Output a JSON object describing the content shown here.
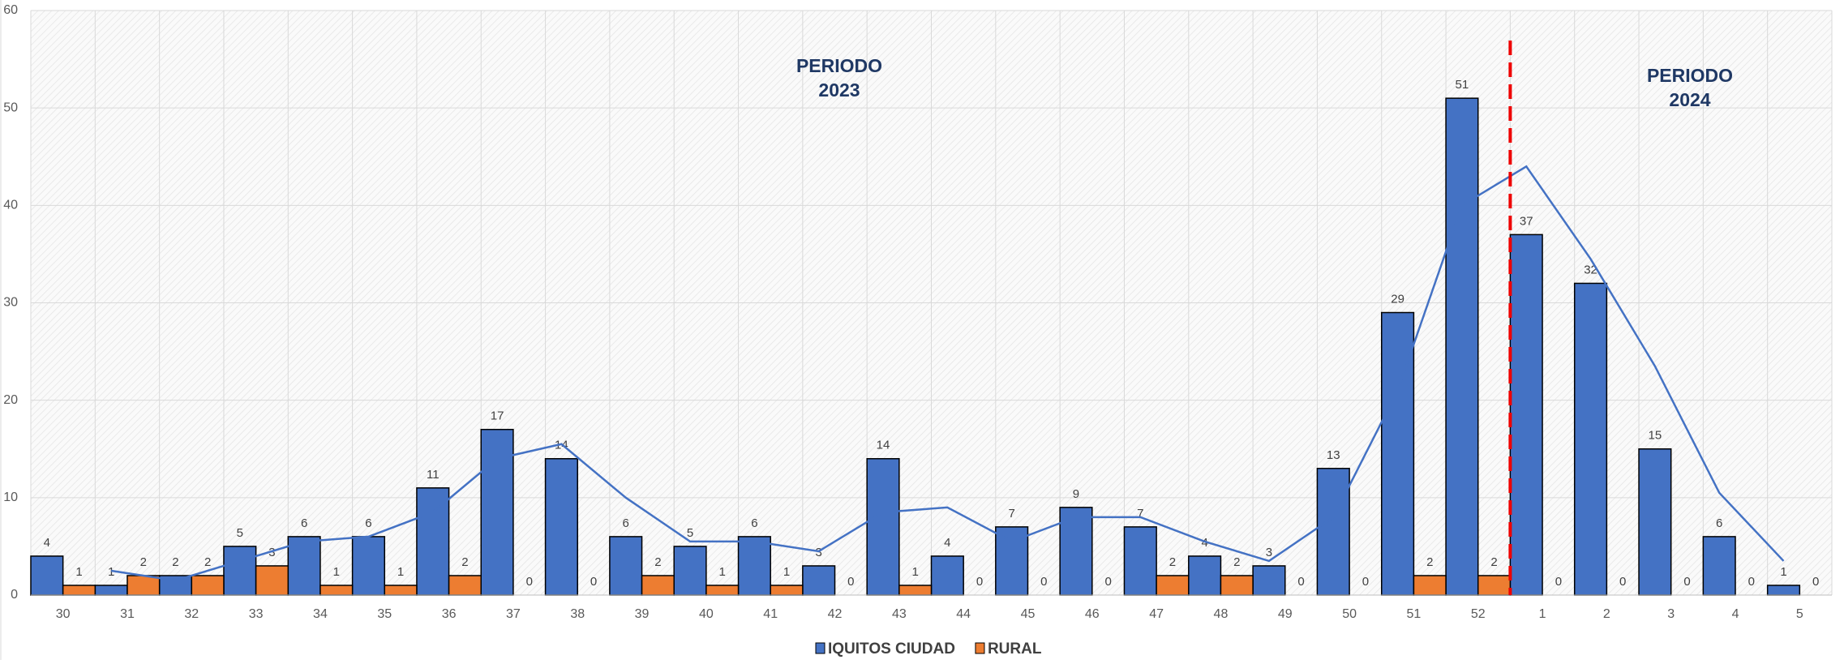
{
  "chart_data": {
    "type": "bar",
    "categories": [
      "30",
      "31",
      "32",
      "33",
      "34",
      "35",
      "36",
      "37",
      "38",
      "39",
      "40",
      "41",
      "42",
      "43",
      "44",
      "45",
      "46",
      "47",
      "48",
      "49",
      "50",
      "51",
      "52",
      "1",
      "2",
      "3",
      "4",
      "5"
    ],
    "series": [
      {
        "name": "IQUITOS CIUDAD",
        "color": "#4472c4",
        "values": [
          4,
          1,
          2,
          5,
          6,
          6,
          11,
          17,
          14,
          6,
          5,
          6,
          3,
          14,
          4,
          7,
          9,
          7,
          4,
          3,
          13,
          29,
          51,
          37,
          32,
          15,
          6,
          1
        ]
      },
      {
        "name": "RURAL",
        "color": "#ed7d31",
        "values": [
          1,
          2,
          2,
          3,
          1,
          1,
          2,
          0,
          0,
          2,
          1,
          1,
          0,
          1,
          0,
          0,
          0,
          2,
          2,
          0,
          0,
          2,
          2,
          0,
          0,
          0,
          0,
          0
        ]
      }
    ],
    "trend": {
      "color": "#4472c4",
      "values": [
        null,
        2.5,
        1.5,
        3.5,
        5.5,
        6,
        8.5,
        14,
        15.5,
        10,
        5.5,
        5.5,
        4.5,
        8.5,
        9,
        5.5,
        8,
        8,
        5.5,
        3.5,
        8,
        21,
        40,
        44,
        34.5,
        23.5,
        10.5,
        3.5
      ]
    },
    "annotations": [
      [
        "PERIODO",
        "2023"
      ],
      [
        "PERIODO",
        "2024"
      ]
    ],
    "ylim": [
      0,
      60
    ],
    "yticks": [
      0,
      10,
      20,
      30,
      40,
      50,
      60
    ],
    "grid": true,
    "legend": "bottom"
  }
}
